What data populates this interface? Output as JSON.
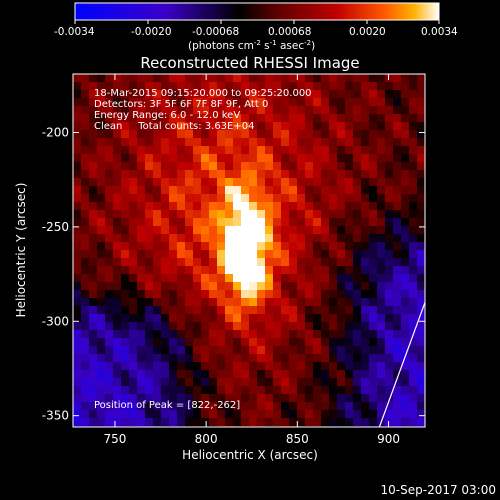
{
  "colorbar": {
    "ticks": [
      "-0.0034",
      "-0.0020",
      "-0.00068",
      "0.00068",
      "0.0020",
      "0.0034"
    ],
    "unit_label": "(photons cm",
    "unit_sup1": "-2",
    "unit_mid": " s",
    "unit_sup2": "-1",
    "unit_end": " asec",
    "unit_sup3": "-2",
    "unit_close": ")",
    "colors": [
      "#0000ff",
      "#3a00c8",
      "#000000",
      "#5a0000",
      "#c00000",
      "#ff5a00",
      "#ffb000",
      "#ffffff"
    ]
  },
  "chart_data": {
    "type": "heatmap",
    "title": "Reconstructed RHESSI Image",
    "xlabel": "Heliocentric X (arcsec)",
    "ylabel": "Heliocentric Y (arcsec)",
    "xlim": [
      727,
      920
    ],
    "ylim": [
      -356,
      -169
    ],
    "xticks": [
      "750",
      "800",
      "850",
      "900"
    ],
    "xtick_values": [
      750,
      800,
      850,
      900
    ],
    "yticks": [
      "-200",
      "-250",
      "-300",
      "-350"
    ],
    "ytick_values": [
      -200,
      -250,
      -300,
      -350
    ],
    "peak": {
      "x": 822,
      "y": -262
    },
    "annotations": {
      "line1": "18-Mar-2015 09:15:20.000 to 09:25:20.000",
      "line2": "Detectors: 3F 5F 6F 7F 8F 9F, Att 0",
      "line3": "Energy Range: 6.0 - 12.0 keV",
      "line4": "Clean     Total counts: 3.63E+04",
      "peak_text": "Position of Peak = [822,-262]"
    },
    "limb_line": [
      [
        895,
        -356
      ],
      [
        920,
        -290
      ]
    ]
  },
  "footer": {
    "timestamp": "10-Sep-2017 03:00"
  }
}
